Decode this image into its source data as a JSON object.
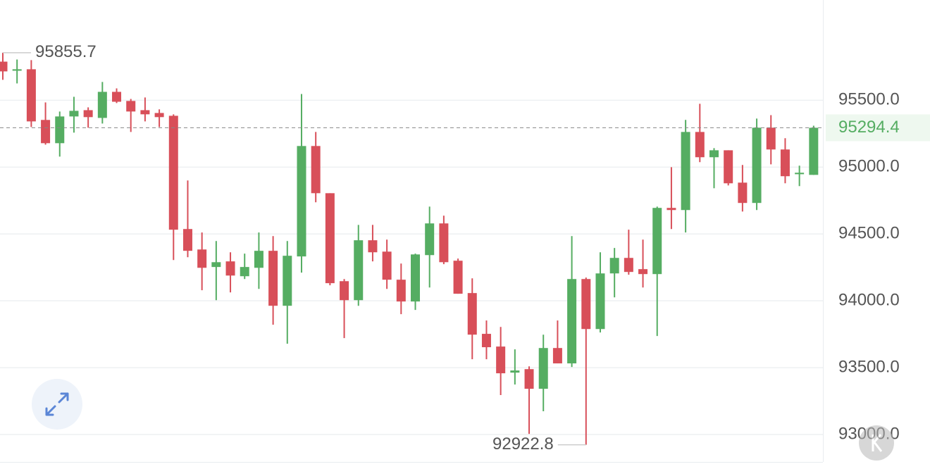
{
  "chart_data": {
    "type": "candlestick",
    "open": [
      95789,
      95721,
      95732,
      95353,
      95179,
      95379,
      95426,
      95368,
      95563,
      95495,
      95426,
      95405,
      95384,
      94537,
      94384,
      94253,
      94295,
      94184,
      94247,
      94374,
      93963,
      94332,
      95158,
      94805,
      94147,
      94005,
      94453,
      94368,
      94158,
      93995,
      94342,
      94579,
      94300,
      94058,
      93753,
      93658,
      93463,
      93489,
      93342,
      93647,
      93532,
      94163,
      93789,
      94205,
      94321,
      94237,
      94200,
      94695,
      94679,
      95263,
      95074,
      95126,
      94884,
      94732,
      95295,
      95132,
      94947,
      94942
    ],
    "high": [
      95855.7,
      95805,
      95800,
      95484,
      95416,
      95526,
      95447,
      95637,
      95589,
      95510,
      95521,
      95432,
      95395,
      94900,
      94511,
      94447,
      94363,
      94353,
      94511,
      94484,
      94447,
      95547,
      95263,
      94805,
      94163,
      94568,
      94568,
      94458,
      94279,
      94353,
      94705,
      94637,
      94316,
      94168,
      93853,
      93805,
      93637,
      93510,
      93747,
      93853,
      94484,
      94174,
      94363,
      94395,
      94532,
      94458,
      94705,
      95000,
      95353,
      95474,
      95142,
      95126,
      95016,
      95363,
      95389,
      95216,
      95011,
      95310
    ],
    "low": [
      95653,
      95626,
      95300,
      95168,
      95079,
      95258,
      95295,
      95326,
      95479,
      95263,
      95342,
      95300,
      94305,
      94326,
      94079,
      94005,
      94063,
      94163,
      94089,
      93821,
      93679,
      94211,
      94737,
      94116,
      93721,
      93963,
      94295,
      94089,
      93900,
      93932,
      94100,
      94274,
      94053,
      93563,
      93563,
      93295,
      93374,
      93005,
      93174,
      93532,
      93505,
      92922.8,
      93763,
      94026,
      94195,
      94100,
      93737,
      94537,
      94511,
      95037,
      94842,
      94863,
      94668,
      94679,
      95021,
      94879,
      94858,
      94942
    ],
    "close": [
      95716,
      95732,
      95342,
      95179,
      95379,
      95421,
      95374,
      95563,
      95489,
      95416,
      95395,
      95374,
      94532,
      94374,
      94247,
      94289,
      94189,
      94253,
      94374,
      93963,
      94337,
      95158,
      94805,
      94132,
      94005,
      94453,
      94363,
      94158,
      93995,
      94347,
      94579,
      94289,
      94053,
      93747,
      93653,
      93458,
      93479,
      93342,
      93647,
      93532,
      94163,
      93789,
      94205,
      94321,
      94216,
      94200,
      94695,
      94679,
      95263,
      95074,
      95126,
      94879,
      94732,
      95295,
      95132,
      94932,
      94958,
      95294.4
    ],
    "up_color": "#55ad62",
    "down_color": "#d84f59",
    "ylim": [
      92800,
      96250
    ],
    "yticks": [
      {
        "value": 93000,
        "label": "93000.0"
      },
      {
        "value": 93500,
        "label": "93500.0"
      },
      {
        "value": 94000,
        "label": "94000.0"
      },
      {
        "value": 94500,
        "label": "94500.0"
      },
      {
        "value": 95000,
        "label": "95000.0"
      },
      {
        "value": 95500,
        "label": "95500.0"
      }
    ],
    "grid": true,
    "last_price": 95294.4,
    "max_annotation": 95855.7,
    "min_annotation": 92922.8
  }
}
